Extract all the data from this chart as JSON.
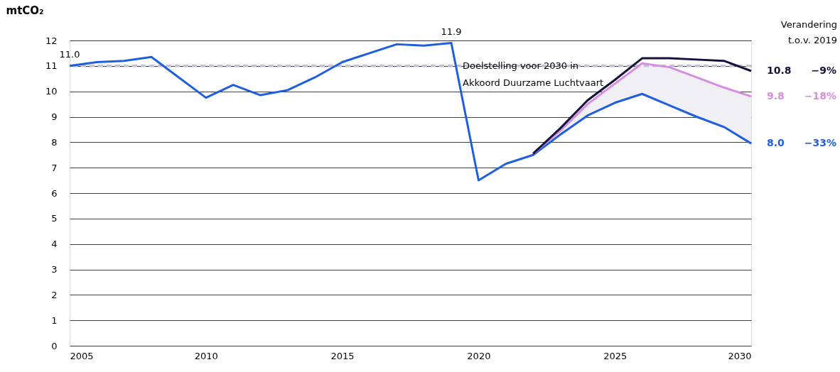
{
  "chart_data": {
    "type": "line",
    "ylabel": "mtCO₂",
    "x": [
      2005,
      2006,
      2007,
      2008,
      2009,
      2010,
      2011,
      2012,
      2013,
      2014,
      2015,
      2016,
      2017,
      2018,
      2019,
      2020,
      2021,
      2022,
      2023,
      2024,
      2025,
      2026,
      2027,
      2028,
      2029,
      2030
    ],
    "series": [
      {
        "color": "#1f5fde",
        "values": [
          11.0,
          11.15,
          11.2,
          11.35,
          10.55,
          9.75,
          10.25,
          9.85,
          10.05,
          10.55,
          11.15,
          11.5,
          11.85,
          11.8,
          11.9,
          6.5,
          7.15,
          7.5,
          8.3,
          9.05,
          9.55,
          9.9,
          9.45,
          9.0,
          8.6,
          7.95
        ],
        "value_labels": [
          "11.0",
          null,
          null,
          null,
          null,
          null,
          null,
          null,
          null,
          null,
          null,
          null,
          null,
          null,
          "11.9",
          null,
          null,
          null,
          null,
          null,
          null,
          null,
          null,
          null,
          null,
          "8.0"
        ]
      },
      {
        "color": "#d78ee0",
        "x": [
          2022,
          2023,
          2024,
          2025,
          2026,
          2027,
          2028,
          2029,
          2030
        ],
        "values": [
          7.55,
          8.45,
          9.5,
          10.3,
          11.1,
          10.95,
          10.55,
          10.15,
          9.8
        ],
        "lower": [
          7.5,
          8.3,
          9.05,
          9.55,
          9.9,
          9.45,
          9.0,
          8.6,
          7.95
        ],
        "upper": [
          7.55,
          8.45,
          9.5,
          10.3,
          11.1,
          10.95,
          10.55,
          10.15,
          9.8
        ],
        "value_labels": [
          null,
          null,
          null,
          null,
          null,
          null,
          null,
          null,
          "9.8"
        ]
      },
      {
        "color": "#14123f",
        "x": [
          2022,
          2023,
          2024,
          2025,
          2026,
          2027,
          2028,
          2029,
          2030
        ],
        "values": [
          7.55,
          8.55,
          9.65,
          10.45,
          11.3,
          11.3,
          11.25,
          11.2,
          10.8
        ],
        "value_labels": [
          null,
          null,
          null,
          null,
          null,
          null,
          null,
          null,
          "10.8"
        ]
      }
    ],
    "xlim": [
      2005,
      2030
    ],
    "xticks": [
      2005,
      2010,
      2015,
      2020,
      2025,
      2030
    ],
    "ylim": [
      0,
      12
    ],
    "yticks": [
      0,
      1,
      2,
      3,
      4,
      5,
      6,
      7,
      8,
      9,
      10,
      11,
      12
    ],
    "grid": "y",
    "line_style": "solid",
    "marker": "none",
    "ref_lines": [
      {
        "axis": "y",
        "value": 11,
        "label": "Doelstelling voor 2030 in\nAkkoord Duurzame Luchtvaart",
        "color": "#c3c1d6",
        "line_style": "dashed"
      }
    ],
    "annotations": [
      "Verandering\nt.o.v. 2019",
      "−9%",
      "−18%",
      "−33%"
    ]
  }
}
